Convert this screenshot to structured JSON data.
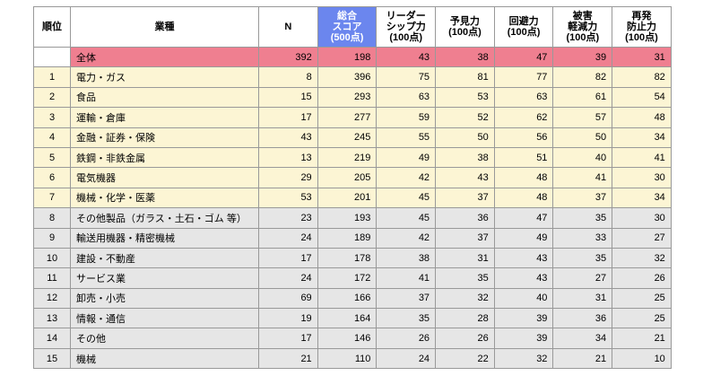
{
  "table": {
    "header": [
      "順位",
      "業種",
      "N",
      "総合\nスコア\n(500点)",
      "リーダー\nシップ力\n(100点)",
      "予見力\n(100点)",
      "回避力\n(100点)",
      "被害\n軽減力\n(100点)",
      "再発\n防止力\n(100点)"
    ],
    "total": [
      "全体",
      392,
      198,
      43,
      38,
      47,
      39,
      31
    ],
    "rows": [
      [
        1,
        "電力・ガス",
        8,
        396,
        75,
        81,
        77,
        82,
        82
      ],
      [
        2,
        "食品",
        15,
        293,
        63,
        53,
        63,
        61,
        54
      ],
      [
        3,
        "運輸・倉庫",
        17,
        277,
        59,
        52,
        62,
        57,
        48
      ],
      [
        4,
        "金融・証券・保険",
        43,
        245,
        55,
        50,
        56,
        50,
        34
      ],
      [
        5,
        "鉄鋼・非鉄金属",
        13,
        219,
        49,
        38,
        51,
        40,
        41
      ],
      [
        6,
        "電気機器",
        29,
        205,
        42,
        43,
        48,
        41,
        30
      ],
      [
        7,
        "機械・化学・医薬",
        53,
        201,
        45,
        37,
        48,
        37,
        34
      ],
      [
        8,
        "その他製品（ガラス・土石・ゴム 等）",
        23,
        193,
        45,
        36,
        47,
        35,
        30
      ],
      [
        9,
        "輸送用機器・精密機械",
        24,
        189,
        42,
        37,
        49,
        33,
        27
      ],
      [
        10,
        "建設・不動産",
        17,
        178,
        38,
        31,
        43,
        35,
        32
      ],
      [
        11,
        "サービス業",
        24,
        172,
        41,
        35,
        43,
        27,
        26
      ],
      [
        12,
        "卸売・小売",
        69,
        166,
        37,
        32,
        40,
        31,
        25
      ],
      [
        13,
        "情報・通信",
        19,
        164,
        35,
        28,
        39,
        36,
        25
      ],
      [
        14,
        "その他",
        17,
        146,
        26,
        26,
        39,
        34,
        21
      ],
      [
        15,
        "機械",
        21,
        110,
        24,
        22,
        32,
        21,
        10
      ]
    ]
  }
}
